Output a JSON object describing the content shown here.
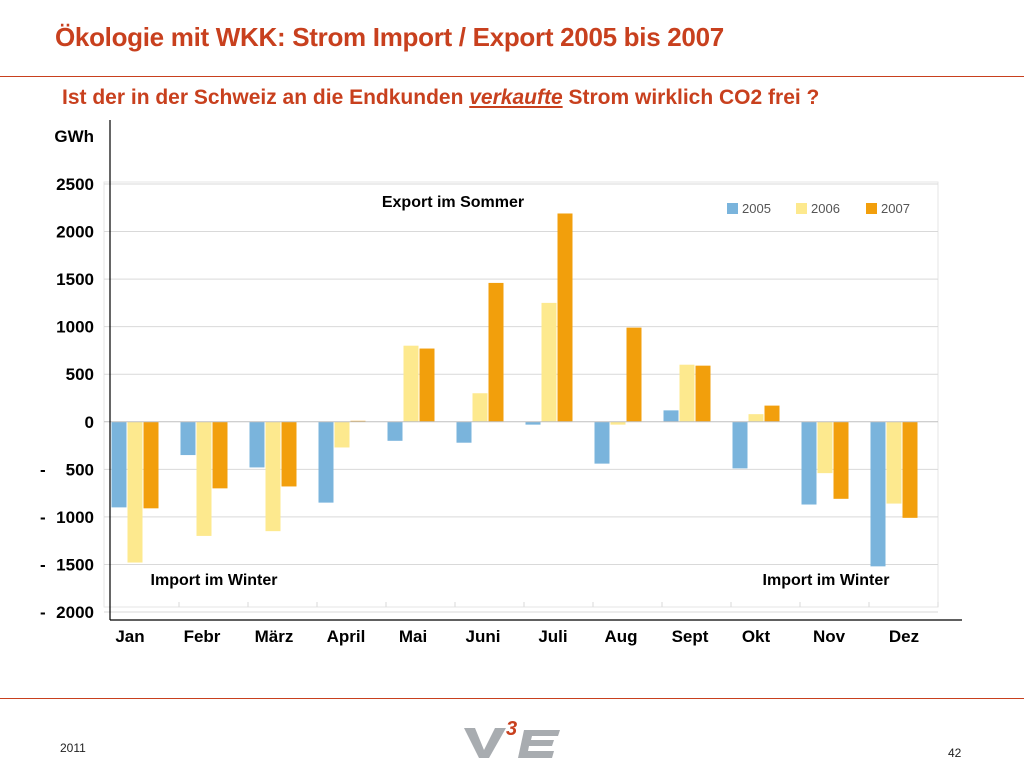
{
  "header": {
    "title": "Ökologie mit WKK: Strom Import / Export 2005 bis 2007",
    "subtitle_pre": "Ist der in der Schweiz an die Endkunden ",
    "subtitle_emph": "verkaufte",
    "subtitle_post": " Strom wirklich CO2 frei ?"
  },
  "footer": {
    "year": "2011",
    "page": "42",
    "logo_text": "V3E"
  },
  "colors": {
    "title": "#c8401e",
    "series_2005": "#7ab4dc",
    "series_2006": "#fde98e",
    "series_2007": "#f29f0c",
    "grid": "#d9d9d9"
  },
  "chart_data": {
    "type": "bar",
    "ylabel": "GWh",
    "ylim": [
      -2000,
      2500
    ],
    "yticks": [
      2500,
      2000,
      1500,
      1000,
      500,
      0,
      -500,
      -1000,
      -1500,
      -2000
    ],
    "ytick_labels": [
      "2500",
      "2000",
      "1500",
      "1000",
      "500",
      "0",
      "-   500",
      "- 1000",
      "- 1500",
      "- 2000"
    ],
    "categories": [
      "Jan",
      "Febr",
      "März",
      "April",
      "Mai",
      "Juni",
      "Juli",
      "Aug",
      "Sept",
      "Okt",
      "Nov",
      "Dez"
    ],
    "series": [
      {
        "name": "2005",
        "values": [
          -900,
          -350,
          -480,
          -850,
          -200,
          -220,
          -30,
          -440,
          120,
          -490,
          -870,
          -1520
        ]
      },
      {
        "name": "2006",
        "values": [
          -1480,
          -1200,
          -1150,
          -270,
          800,
          300,
          1250,
          -30,
          600,
          80,
          -540,
          -860
        ]
      },
      {
        "name": "2007",
        "values": [
          -910,
          -700,
          -680,
          10,
          770,
          1460,
          2190,
          990,
          590,
          170,
          -810,
          -1010
        ]
      }
    ],
    "legend_position": "top-right",
    "grid": true,
    "annotations": [
      {
        "text": "Export im Sommer",
        "anchor": "export"
      },
      {
        "text": "Import im Winter",
        "anchor": "import_left"
      },
      {
        "text": "Import im Winter",
        "anchor": "import_right"
      }
    ]
  }
}
